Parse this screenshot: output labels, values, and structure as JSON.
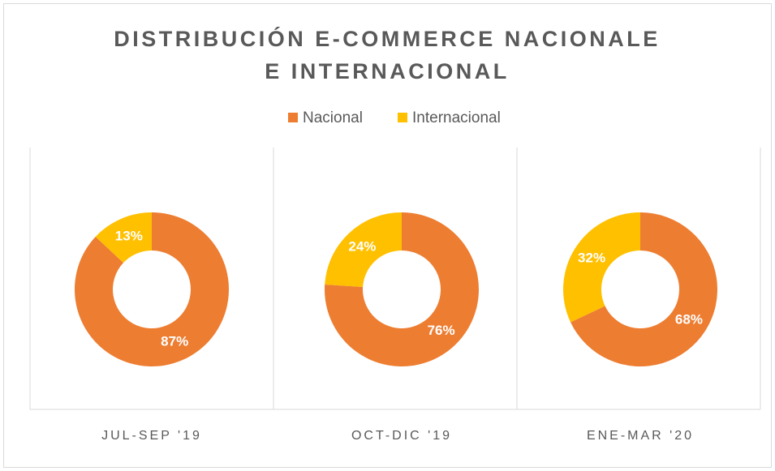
{
  "chart_data": {
    "type": "donut",
    "title": "DISTRIBUCIÓN E-COMMERCE NACIONALE E INTERNACIONAL",
    "categories": [
      "JUL-SEP '19",
      "OCT-DIC '19",
      "ENE-MAR '20"
    ],
    "series": [
      {
        "name": "Nacional",
        "color": "#ed7d31",
        "values": [
          87,
          76,
          68
        ],
        "value_labels": [
          "87%",
          "76%",
          "68%"
        ]
      },
      {
        "name": "Internacional",
        "color": "#ffc000",
        "values": [
          13,
          24,
          32
        ],
        "value_labels": [
          "13%",
          "24%",
          "32%"
        ]
      }
    ],
    "legend": "top"
  }
}
